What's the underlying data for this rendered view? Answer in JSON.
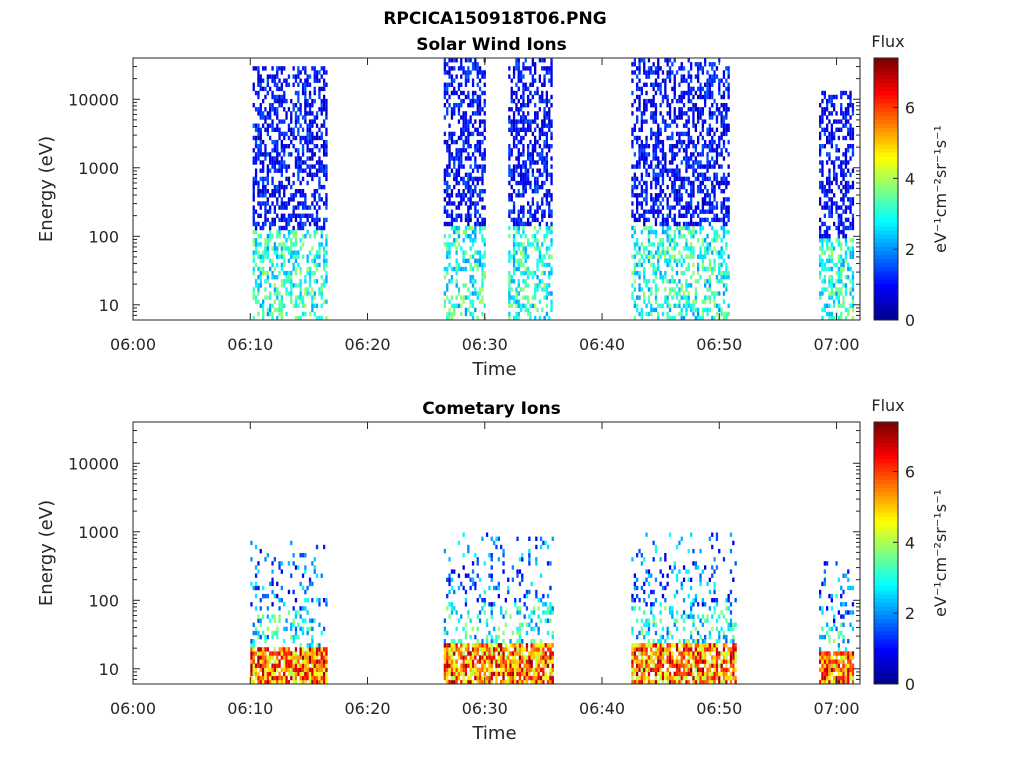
{
  "figure": {
    "title": "RPCICA150918T06.PNG"
  },
  "colors": {
    "jet": [
      "#00008f",
      "#0000ff",
      "#007fff",
      "#00ffff",
      "#7fff7f",
      "#ffff00",
      "#ff7f00",
      "#ff0000",
      "#7f0000"
    ]
  },
  "chart_data": [
    {
      "type": "heatmap",
      "title": "Solar Wind Ions",
      "xlabel": "Time",
      "ylabel": "Energy (eV)",
      "x_ticks": [
        "06:00",
        "06:10",
        "06:20",
        "06:30",
        "06:40",
        "06:50",
        "07:00"
      ],
      "y_ticks": [
        "10",
        "100",
        "1000",
        "10000"
      ],
      "y_scale": "log",
      "xlim_minutes": [
        0,
        62
      ],
      "ylim": [
        6,
        40000
      ],
      "colorbar": {
        "label": "Flux",
        "units": "eV⁻¹cm⁻²sr⁻¹s⁻¹",
        "ticks": [
          "0",
          "2",
          "4",
          "6"
        ],
        "range": [
          0,
          7.4
        ]
      },
      "bursts_minutes": [
        {
          "start": 10.2,
          "end": 16.4,
          "emin": 6,
          "emax": 30000
        },
        {
          "start": 26.5,
          "end": 30.0,
          "emin": 6,
          "emax": 35000
        },
        {
          "start": 32.0,
          "end": 35.8,
          "emin": 6,
          "emax": 35000
        },
        {
          "start": 42.5,
          "end": 50.8,
          "emin": 6,
          "emax": 35000
        },
        {
          "start": 58.5,
          "end": 61.5,
          "emin": 6,
          "emax": 12000
        }
      ]
    },
    {
      "type": "heatmap",
      "title": "Cometary Ions",
      "xlabel": "Time",
      "ylabel": "Energy (eV)",
      "x_ticks": [
        "06:00",
        "06:10",
        "06:20",
        "06:30",
        "06:40",
        "06:50",
        "07:00"
      ],
      "y_ticks": [
        "10",
        "100",
        "1000",
        "10000"
      ],
      "y_scale": "log",
      "xlim_minutes": [
        0,
        62
      ],
      "ylim": [
        6,
        40000
      ],
      "colorbar": {
        "label": "Flux",
        "units": "eV⁻¹cm⁻²sr⁻¹s⁻¹",
        "ticks": [
          "0",
          "2",
          "4",
          "6"
        ],
        "range": [
          0,
          7.4
        ]
      },
      "bursts_minutes": [
        {
          "start": 10.0,
          "end": 16.5,
          "emin": 6,
          "emax": 700
        },
        {
          "start": 26.5,
          "end": 30.5,
          "emin": 6,
          "emax": 900
        },
        {
          "start": 30.5,
          "end": 35.8,
          "emin": 6,
          "emax": 900
        },
        {
          "start": 42.5,
          "end": 51.5,
          "emin": 6,
          "emax": 900
        },
        {
          "start": 58.5,
          "end": 61.5,
          "emin": 6,
          "emax": 350
        }
      ]
    }
  ]
}
